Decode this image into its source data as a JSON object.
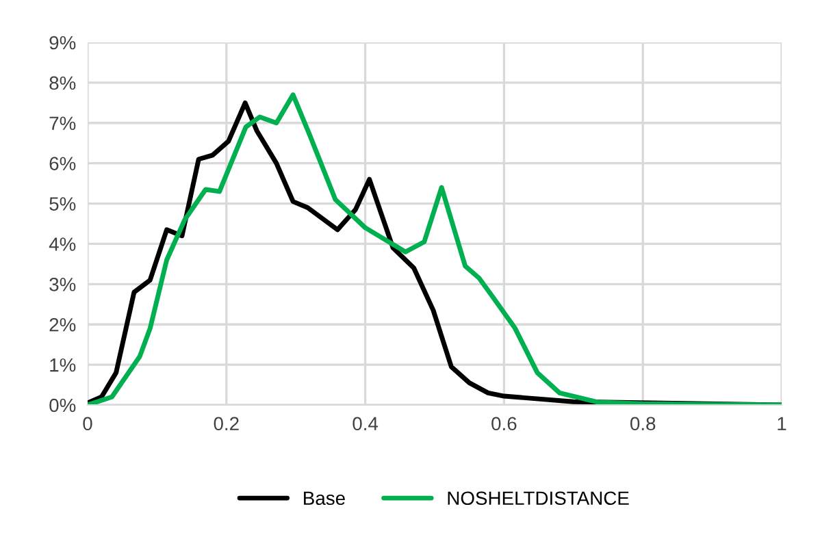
{
  "chart_data": {
    "type": "line",
    "xlim": [
      0,
      1
    ],
    "xticks": [
      0,
      {
        "value": 0.2,
        "label": "0.2"
      },
      {
        "value": 0.4,
        "label": "0.4"
      },
      {
        "value": 0.6,
        "label": "0.6"
      },
      {
        "value": 0.8,
        "label": "0.8"
      },
      1
    ],
    "ylim": [
      0,
      9
    ],
    "yticks": [
      {
        "value": 0,
        "label": "0%"
      },
      {
        "value": 1,
        "label": "1%"
      },
      {
        "value": 2,
        "label": "2%"
      },
      {
        "value": 3,
        "label": "3%"
      },
      {
        "value": 4,
        "label": "4%"
      },
      {
        "value": 5,
        "label": "5%"
      },
      {
        "value": 6,
        "label": "6%"
      },
      {
        "value": 7,
        "label": "7%"
      },
      {
        "value": 8,
        "label": "8%"
      },
      {
        "value": 9,
        "label": "9%"
      }
    ],
    "grid": true,
    "legend": "bottom",
    "marker": "none",
    "line_style": "solid",
    "series": [
      {
        "name": "Base",
        "color": "#000000",
        "x": [
          0,
          0.02,
          0.041,
          0.067,
          0.09,
          0.114,
          0.136,
          0.16,
          0.18,
          0.203,
          0.227,
          0.244,
          0.272,
          0.296,
          0.317,
          0.36,
          0.386,
          0.406,
          0.44,
          0.47,
          0.498,
          0.524,
          0.55,
          0.577,
          0.6,
          0.7,
          1
        ],
        "values": [
          0.05,
          0.2,
          0.8,
          2.8,
          3.1,
          4.35,
          4.2,
          6.1,
          6.2,
          6.55,
          7.5,
          6.8,
          6.0,
          5.05,
          4.9,
          4.35,
          4.85,
          5.6,
          3.9,
          3.4,
          2.35,
          0.95,
          0.55,
          0.3,
          0.22,
          0.08,
          0
        ]
      },
      {
        "name": "NOSHELTDISTANCE",
        "color": "#00b050",
        "x": [
          0,
          0.035,
          0.075,
          0.09,
          0.114,
          0.14,
          0.17,
          0.19,
          0.228,
          0.248,
          0.272,
          0.296,
          0.32,
          0.357,
          0.4,
          0.458,
          0.485,
          0.51,
          0.544,
          0.564,
          0.583,
          0.616,
          0.648,
          0.68,
          0.735,
          0.8,
          1
        ],
        "values": [
          0,
          0.2,
          1.2,
          1.9,
          3.6,
          4.6,
          5.35,
          5.3,
          6.9,
          7.15,
          7.0,
          7.7,
          6.7,
          5.1,
          4.4,
          3.8,
          4.05,
          5.4,
          3.45,
          3.15,
          2.7,
          1.9,
          0.8,
          0.3,
          0.07,
          0.03,
          0
        ]
      }
    ]
  }
}
